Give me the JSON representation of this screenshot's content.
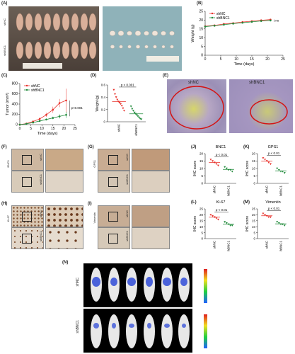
{
  "panels": {
    "A": {
      "label": "(A)",
      "row1": "shNC",
      "row2": "shBNC1"
    },
    "B": {
      "label": "(B)"
    },
    "C": {
      "label": "(C)"
    },
    "D": {
      "label": "(D)"
    },
    "E": {
      "label": "(E)",
      "left": "shNC",
      "right": "shBNC1"
    },
    "F": {
      "label": "(F)",
      "marker": "BNC1",
      "row1": "shNC",
      "row2": "shBNC1"
    },
    "G": {
      "label": "(G)",
      "marker": "GPS1",
      "row1": "shNC",
      "row2": "shBNC1"
    },
    "H": {
      "label": "(H)",
      "marker": "Ki-67",
      "row1": "shNC",
      "row2": "shBNC1"
    },
    "I": {
      "label": "(I)",
      "marker": "Vimentin",
      "row1": "shNC",
      "row2": "shBNC1"
    },
    "J": {
      "label": "(J)"
    },
    "K": {
      "label": "(K)"
    },
    "L": {
      "label": "(L)"
    },
    "M": {
      "label": "(M)"
    },
    "N": {
      "label": "(N)",
      "row1": "shNC",
      "row2": "shBNC1"
    }
  },
  "colors": {
    "shNC": "#e8302a",
    "shBNC1": "#1f8a3a"
  },
  "chart_data": [
    {
      "id": "B",
      "type": "line",
      "xlabel": "Time (days)",
      "ylabel": "Weight (g)",
      "xlim": [
        0,
        25
      ],
      "ylim": [
        0,
        25
      ],
      "xticks": [
        0,
        5,
        10,
        15,
        20,
        25
      ],
      "yticks": [
        0,
        5,
        10,
        15,
        20,
        25
      ],
      "legend": [
        "shNC",
        "shBNC1"
      ],
      "annotation": "ns",
      "series": [
        {
          "name": "shNC",
          "x": [
            0,
            3,
            6,
            9,
            12,
            15,
            18,
            21
          ],
          "y": [
            16.5,
            17.0,
            17.8,
            18.3,
            18.9,
            19.4,
            19.9,
            20.3
          ]
        },
        {
          "name": "shBNC1",
          "x": [
            0,
            3,
            6,
            9,
            12,
            15,
            18,
            21
          ],
          "y": [
            16.3,
            16.8,
            17.4,
            18.0,
            18.5,
            19.0,
            19.5,
            19.8
          ]
        }
      ]
    },
    {
      "id": "C",
      "type": "line",
      "xlabel": "Time (days)",
      "ylabel": "Tumor (mm³)",
      "xlim": [
        0,
        25
      ],
      "ylim": [
        0,
        800
      ],
      "xticks": [
        0,
        5,
        10,
        15,
        20,
        25
      ],
      "yticks": [
        0,
        200,
        400,
        600,
        800
      ],
      "legend": [
        "shNC",
        "shBNC1"
      ],
      "annotation": "p<0.001",
      "series": [
        {
          "name": "shNC",
          "x": [
            0,
            3,
            6,
            9,
            12,
            15,
            18,
            21
          ],
          "y": [
            0,
            20,
            60,
            110,
            190,
            290,
            420,
            470
          ],
          "err": [
            0,
            10,
            20,
            30,
            40,
            60,
            80,
            230
          ]
        },
        {
          "name": "shBNC1",
          "x": [
            0,
            3,
            6,
            9,
            12,
            15,
            18,
            21
          ],
          "y": [
            0,
            15,
            40,
            70,
            100,
            130,
            160,
            190
          ],
          "err": [
            0,
            5,
            10,
            15,
            20,
            25,
            40,
            60
          ]
        }
      ]
    },
    {
      "id": "D",
      "type": "scatter",
      "ylabel": "Weight (g)",
      "ylim": [
        0,
        0.6
      ],
      "yticks": [
        0,
        0.2,
        0.4,
        0.6
      ],
      "categories": [
        "shNC",
        "shBNC1"
      ],
      "annotation": "p < 0.001",
      "series": [
        {
          "name": "shNC",
          "values": [
            0.52,
            0.45,
            0.4,
            0.36,
            0.33,
            0.31,
            0.29,
            0.26,
            0.22,
            0.18
          ],
          "mean": 0.33
        },
        {
          "name": "shBNC1",
          "values": [
            0.25,
            0.21,
            0.18,
            0.15,
            0.13,
            0.11,
            0.09,
            0.07,
            0.05,
            0.04
          ],
          "mean": 0.13
        }
      ]
    },
    {
      "id": "J",
      "type": "scatter",
      "title": "BNC1",
      "ylabel": "IHC score",
      "ylim": [
        0,
        20
      ],
      "yticks": [
        0,
        5,
        10,
        15,
        20
      ],
      "categories": [
        "shNC",
        "shBNC1"
      ],
      "annotation": "p < 0.01",
      "series": [
        {
          "name": "shNC",
          "values": [
            16,
            15,
            14,
            13,
            12
          ],
          "mean": 14
        },
        {
          "name": "shBNC1",
          "values": [
            11,
            10,
            9,
            9,
            8
          ],
          "mean": 9.4
        }
      ]
    },
    {
      "id": "K",
      "type": "scatter",
      "title": "GPS1",
      "ylabel": "IHC score",
      "ylim": [
        0,
        20
      ],
      "yticks": [
        0,
        5,
        10,
        15,
        20
      ],
      "categories": [
        "shNC",
        "shBNC1"
      ],
      "annotation": "p < 0.01",
      "series": [
        {
          "name": "shNC",
          "values": [
            17,
            16,
            15,
            14,
            13
          ],
          "mean": 15
        },
        {
          "name": "shBNC1",
          "values": [
            10,
            9,
            8,
            8,
            7
          ],
          "mean": 8.4
        }
      ]
    },
    {
      "id": "L",
      "type": "scatter",
      "title": "Ki-67",
      "ylabel": "IHC score",
      "ylim": [
        0,
        25
      ],
      "yticks": [
        0,
        5,
        10,
        15,
        20,
        25
      ],
      "categories": [
        "shNC",
        "shBNC1"
      ],
      "annotation": "p < 0.01",
      "series": [
        {
          "name": "shNC",
          "values": [
            20,
            19,
            18,
            17,
            16
          ],
          "mean": 18
        },
        {
          "name": "shBNC1",
          "values": [
            14,
            13,
            12,
            11,
            11
          ],
          "mean": 12.2
        }
      ]
    },
    {
      "id": "M",
      "type": "scatter",
      "title": "Vimentin",
      "ylabel": "IHC score",
      "ylim": [
        0,
        25
      ],
      "yticks": [
        0,
        5,
        10,
        15,
        20,
        25
      ],
      "categories": [
        "shNC",
        "shBNC1"
      ],
      "annotation": "p < 0.01",
      "series": [
        {
          "name": "shNC",
          "values": [
            21,
            20,
            19,
            18,
            18
          ],
          "mean": 19.2
        },
        {
          "name": "shBNC1",
          "values": [
            14,
            13,
            12,
            12,
            11
          ],
          "mean": 12.4
        }
      ]
    }
  ]
}
